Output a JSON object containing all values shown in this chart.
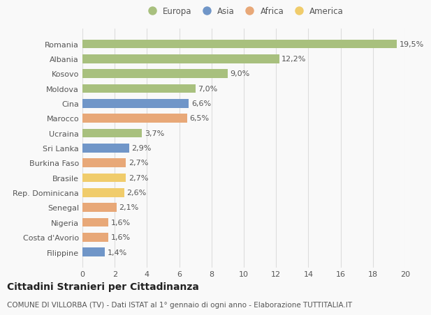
{
  "countries": [
    "Romania",
    "Albania",
    "Kosovo",
    "Moldova",
    "Cina",
    "Marocco",
    "Ucraina",
    "Sri Lanka",
    "Burkina Faso",
    "Brasile",
    "Rep. Dominicana",
    "Senegal",
    "Nigeria",
    "Costa d'Avorio",
    "Filippine"
  ],
  "values": [
    19.5,
    12.2,
    9.0,
    7.0,
    6.6,
    6.5,
    3.7,
    2.9,
    2.7,
    2.7,
    2.6,
    2.1,
    1.6,
    1.6,
    1.4
  ],
  "labels": [
    "19,5%",
    "12,2%",
    "9,0%",
    "7,0%",
    "6,6%",
    "6,5%",
    "3,7%",
    "2,9%",
    "2,7%",
    "2,7%",
    "2,6%",
    "2,1%",
    "1,6%",
    "1,6%",
    "1,4%"
  ],
  "categories": [
    "Europa",
    "Europa",
    "Europa",
    "Europa",
    "Asia",
    "Africa",
    "Europa",
    "Asia",
    "Africa",
    "America",
    "America",
    "Africa",
    "Africa",
    "Africa",
    "Asia"
  ],
  "colors": {
    "Europa": "#a8c07e",
    "Asia": "#7096c8",
    "Africa": "#e8a878",
    "America": "#f0cc6b"
  },
  "legend_labels": [
    "Europa",
    "Asia",
    "Africa",
    "America"
  ],
  "legend_colors": [
    "#a8c07e",
    "#7096c8",
    "#e8a878",
    "#f0cc6b"
  ],
  "title": "Cittadini Stranieri per Cittadinanza",
  "subtitle": "COMUNE DI VILLORBA (TV) - Dati ISTAT al 1° gennaio di ogni anno - Elaborazione TUTTITALIA.IT",
  "xlim": [
    0,
    20
  ],
  "xticks": [
    0,
    2,
    4,
    6,
    8,
    10,
    12,
    14,
    16,
    18,
    20
  ],
  "background_color": "#f9f9f9",
  "grid_color": "#dddddd",
  "bar_height": 0.6,
  "value_label_fontsize": 8,
  "tick_label_fontsize": 8,
  "title_fontsize": 10,
  "subtitle_fontsize": 7.5,
  "legend_fontsize": 8.5
}
